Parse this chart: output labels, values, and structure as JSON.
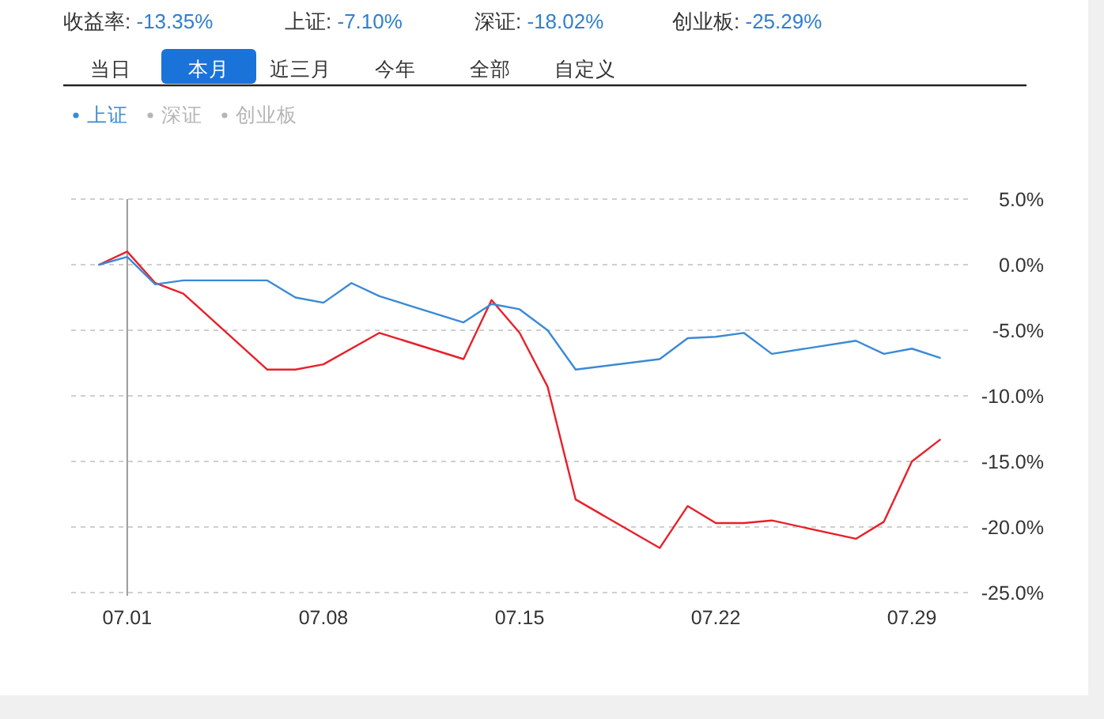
{
  "chart_data": {
    "type": "line",
    "annotations": [
      "收益率: -13.35%",
      "上证: -7.10%",
      "深证: -18.02%",
      "创业板: -25.29%",
      "当日",
      "本月",
      "近三月",
      "今年",
      "全部",
      "自定义"
    ],
    "series": [
      {
        "color": "#e8202a",
        "x": [
          "--06-30",
          "--07-01",
          "--07-02",
          "--07-03",
          "--07-06",
          "--07-07",
          "--07-08",
          "--07-10",
          "--07-13",
          "--07-14",
          "--07-15",
          "--07-16",
          "--07-17",
          "--07-20",
          "--07-21",
          "--07-22",
          "--07-23",
          "--07-24",
          "--07-27",
          "--07-28",
          "--07-29",
          "--07-30"
        ],
        "values": [
          0,
          1.0,
          -1.4,
          -2.2,
          -8.0,
          -8.0,
          -7.6,
          -5.2,
          -7.2,
          -2.7,
          -5.2,
          -9.3,
          -17.9,
          -21.6,
          -18.4,
          -19.7,
          -19.7,
          -19.5,
          -20.9,
          -19.6,
          -15.0,
          -13.35
        ]
      },
      {
        "name": "上证",
        "color": "#3a8ad6",
        "x": [
          "--06-30",
          "--07-01",
          "--07-02",
          "--07-03",
          "--07-06",
          "--07-07",
          "--07-08",
          "--07-09",
          "--07-10",
          "--07-13",
          "--07-14",
          "--07-15",
          "--07-16",
          "--07-17",
          "--07-20",
          "--07-21",
          "--07-22",
          "--07-23",
          "--07-24",
          "--07-27",
          "--07-28",
          "--07-29",
          "--07-30"
        ],
        "values": [
          0,
          0.6,
          -1.5,
          -1.2,
          -1.2,
          -2.5,
          -2.9,
          -1.4,
          -2.4,
          -4.4,
          -3.0,
          -3.4,
          -5.0,
          -8.0,
          -7.2,
          -5.6,
          -5.5,
          -5.2,
          -6.8,
          -5.8,
          -6.8,
          -6.4,
          -7.1
        ]
      },
      {
        "name": "深证",
        "color": "#b5b5b5"
      },
      {
        "name": "创业板",
        "color": "#b5b5b5"
      }
    ],
    "xlim": [
      "--06-29",
      "--07-31"
    ],
    "xticks": [
      {
        "value": "--07-01",
        "label": "07.01"
      },
      {
        "value": "--07-08",
        "label": "07.08"
      },
      {
        "value": "--07-15",
        "label": "07.15"
      },
      {
        "value": "--07-22",
        "label": "07.22"
      },
      {
        "value": "--07-29",
        "label": "07.29"
      }
    ],
    "ylim": [
      -25,
      5
    ],
    "yticks": [
      {
        "value": 5,
        "label": "5.0%"
      },
      {
        "value": 0,
        "label": "0.0%"
      },
      {
        "value": -5,
        "label": "-5.0%"
      },
      {
        "value": -10,
        "label": "-10.0%"
      },
      {
        "value": -15,
        "label": "-15.0%"
      },
      {
        "value": -20,
        "label": "-20.0%"
      },
      {
        "value": -25,
        "label": "-25.0%"
      }
    ],
    "ref_lines": [
      {
        "axis": "x",
        "value": "--07-01",
        "color": "#999999"
      }
    ],
    "grid": "y",
    "legend": "top left",
    "marker": "none",
    "line_style": "solid"
  }
}
